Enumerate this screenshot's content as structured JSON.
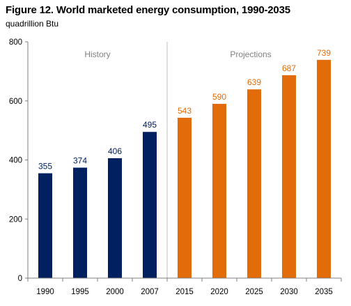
{
  "title": "Figure 12. World marketed energy consumption, 1990-2035",
  "subtitle": "quadrillion Btu",
  "colors": {
    "history": "#002060",
    "projection": "#E36C0A",
    "axis": "#7f7f7f"
  },
  "chart_data": {
    "type": "bar",
    "title": "Figure 12. World marketed energy consumption, 1990-2035",
    "ylabel": "quadrillion Btu",
    "xlabel": "",
    "ylim": [
      0,
      800
    ],
    "yticks": [
      "0",
      "200",
      "400",
      "600",
      "800"
    ],
    "grid": false,
    "categories": [
      "1990",
      "1995",
      "2000",
      "2007",
      "2015",
      "2020",
      "2025",
      "2030",
      "2035"
    ],
    "values": [
      355,
      374,
      406,
      495,
      543,
      590,
      639,
      687,
      739
    ],
    "value_labels": [
      "355",
      "374",
      "406",
      "495",
      "543",
      "590",
      "639",
      "687",
      "739"
    ],
    "groups": [
      "history",
      "history",
      "history",
      "history",
      "projection",
      "projection",
      "projection",
      "projection",
      "projection"
    ],
    "region_labels": {
      "history": "History",
      "projection": "Projections"
    }
  }
}
